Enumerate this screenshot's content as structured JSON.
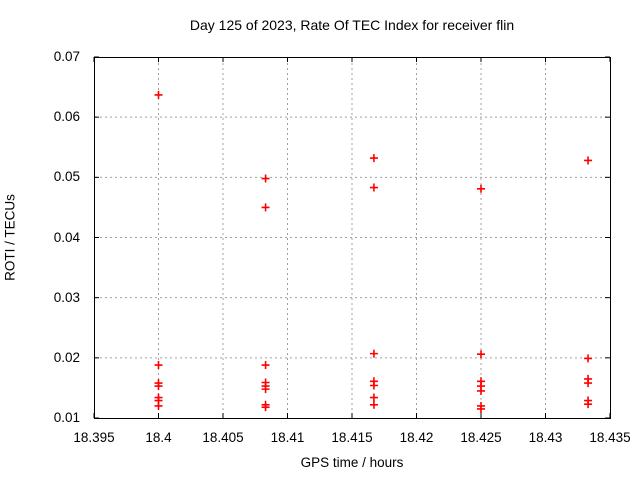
{
  "window": {
    "background": "#ffffff"
  },
  "chart_data": {
    "type": "scatter",
    "title": "Day 125 of 2023, Rate Of TEC Index for receiver flin",
    "xlabel": "GPS time / hours",
    "ylabel": "ROTI / TECUs",
    "xlim": [
      18.395,
      18.435
    ],
    "ylim": [
      0.01,
      0.07
    ],
    "xticks": [
      18.395,
      18.4,
      18.405,
      18.41,
      18.415,
      18.42,
      18.425,
      18.43,
      18.435
    ],
    "xtick_labels": [
      "18.395",
      "18.4",
      "18.405",
      "18.41",
      "18.415",
      "18.42",
      "18.425",
      "18.43",
      "18.435"
    ],
    "yticks": [
      0.01,
      0.02,
      0.03,
      0.04,
      0.05,
      0.06,
      0.07
    ],
    "ytick_labels": [
      "0.01",
      "0.02",
      "0.03",
      "0.04",
      "0.05",
      "0.06",
      "0.07"
    ],
    "grid": true,
    "grid_style": "dashed",
    "legend": "none",
    "marker": "plus",
    "colors": {
      "marker": "#ff0000",
      "grid": "#a0a0a0",
      "frame": "#000000",
      "text": "#000000"
    },
    "series": [
      {
        "name": "ROTI",
        "points": [
          [
            18.4,
            0.0637
          ],
          [
            18.4,
            0.0188
          ],
          [
            18.4,
            0.0158
          ],
          [
            18.4,
            0.0153
          ],
          [
            18.4,
            0.0134
          ],
          [
            18.4,
            0.0129
          ],
          [
            18.4,
            0.012
          ],
          [
            18.4083,
            0.0498
          ],
          [
            18.4083,
            0.045
          ],
          [
            18.4083,
            0.0188
          ],
          [
            18.4083,
            0.0159
          ],
          [
            18.4083,
            0.0153
          ],
          [
            18.4083,
            0.0148
          ],
          [
            18.4083,
            0.0122
          ],
          [
            18.4083,
            0.0118
          ],
          [
            18.4167,
            0.0532
          ],
          [
            18.4167,
            0.0483
          ],
          [
            18.4167,
            0.0207
          ],
          [
            18.4167,
            0.0161
          ],
          [
            18.4167,
            0.0154
          ],
          [
            18.4167,
            0.0134
          ],
          [
            18.4167,
            0.0122
          ],
          [
            18.425,
            0.0481
          ],
          [
            18.425,
            0.0206
          ],
          [
            18.425,
            0.0161
          ],
          [
            18.425,
            0.0153
          ],
          [
            18.425,
            0.0145
          ],
          [
            18.425,
            0.012
          ],
          [
            18.425,
            0.0115
          ],
          [
            18.4333,
            0.0528
          ],
          [
            18.4333,
            0.0199
          ],
          [
            18.4333,
            0.0165
          ],
          [
            18.4333,
            0.0158
          ],
          [
            18.4333,
            0.0129
          ],
          [
            18.4333,
            0.0123
          ]
        ]
      }
    ]
  }
}
